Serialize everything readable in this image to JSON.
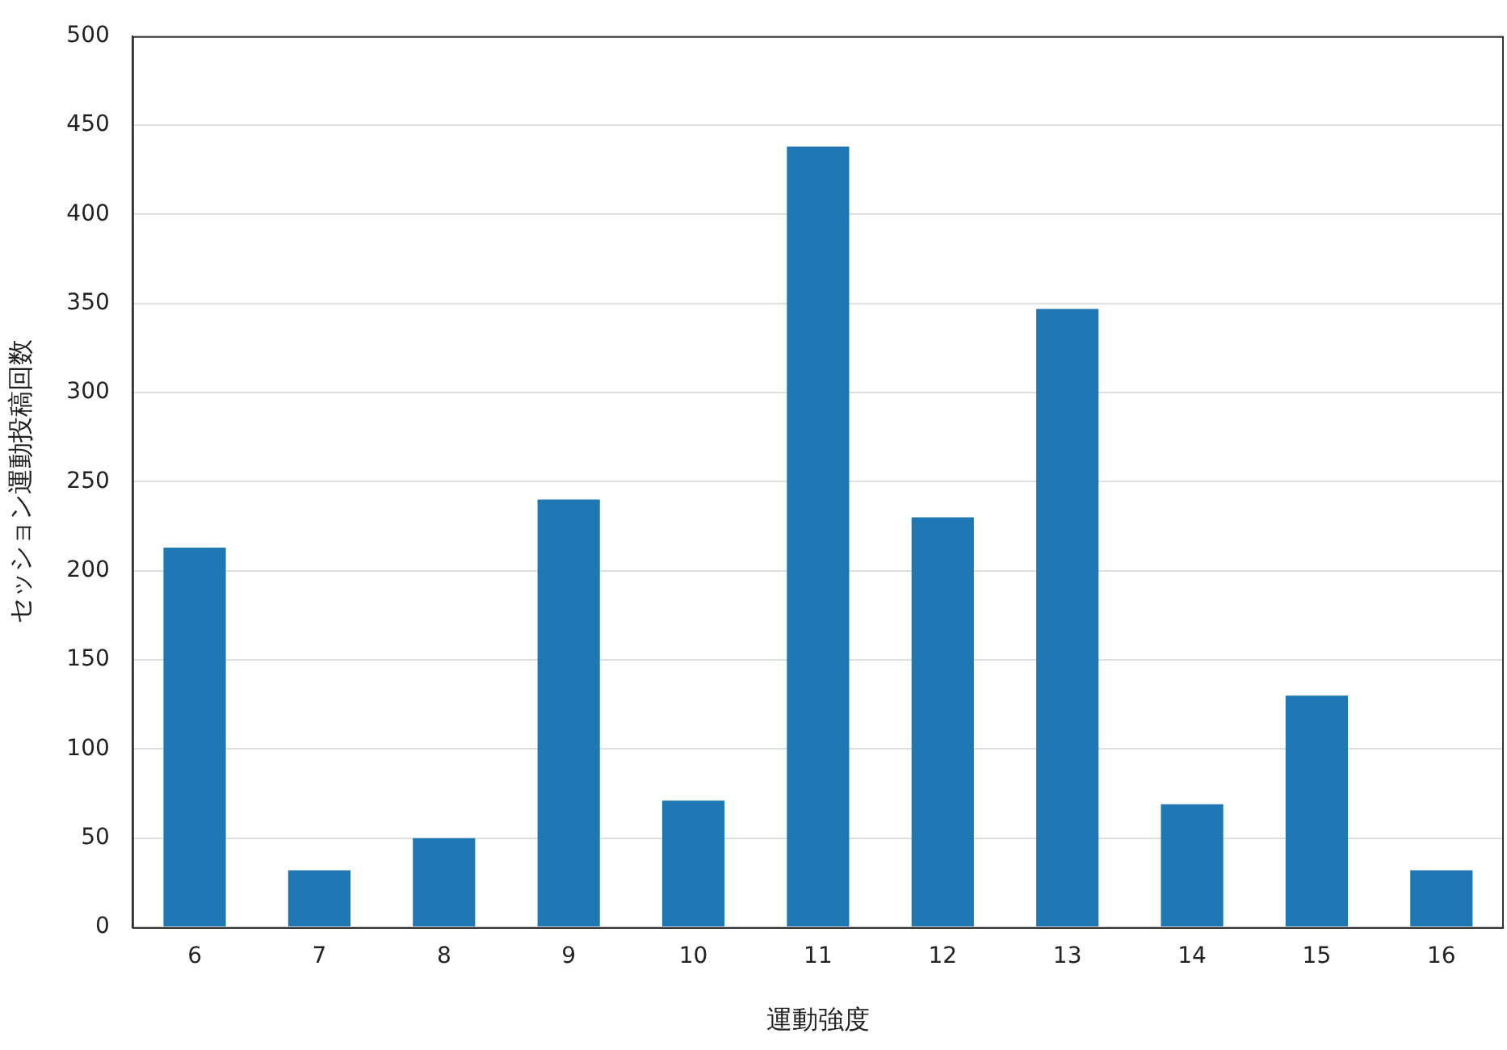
{
  "chart_data": {
    "type": "bar",
    "xlabel": "運動強度",
    "ylabel": "セッション運動投稿回数",
    "categories": [
      "6",
      "7",
      "8",
      "9",
      "10",
      "11",
      "12",
      "13",
      "14",
      "15",
      "16"
    ],
    "values": [
      213,
      32,
      50,
      240,
      71,
      438,
      230,
      347,
      69,
      130,
      32
    ],
    "color": "#1f77b4",
    "ylim": [
      0,
      500
    ],
    "yticks": [
      0,
      50,
      100,
      150,
      200,
      250,
      300,
      350,
      400,
      450,
      500
    ],
    "grid": "y"
  }
}
